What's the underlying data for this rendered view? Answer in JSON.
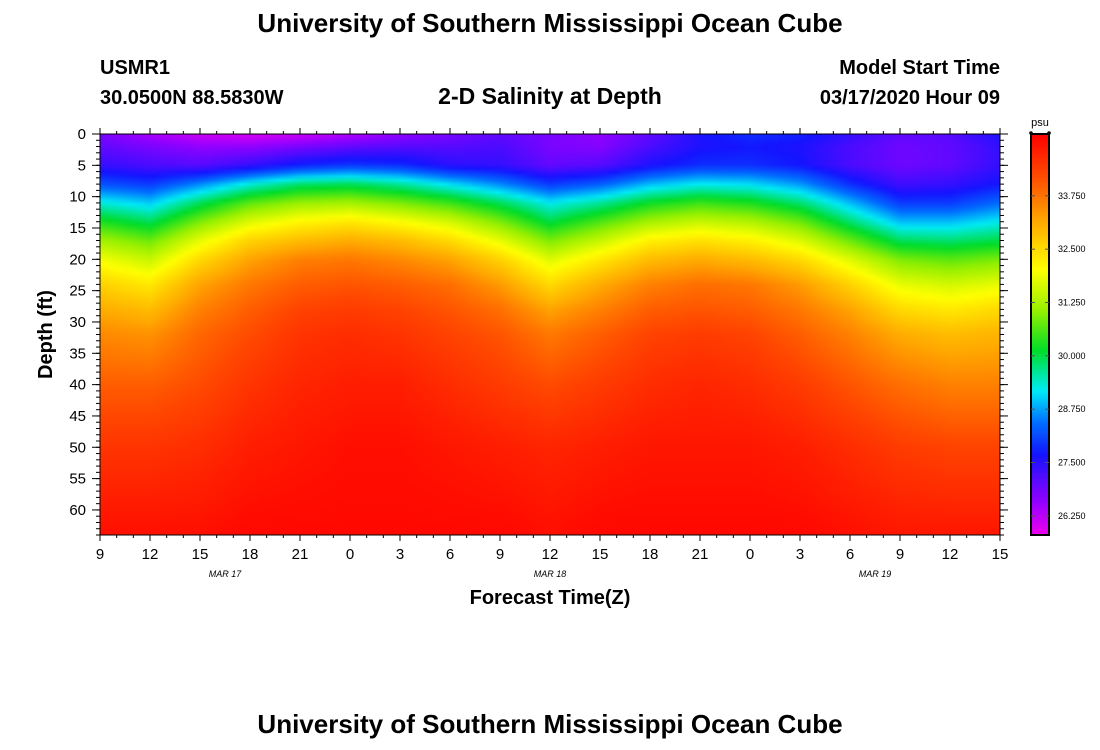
{
  "header": {
    "title_top": "University of Southern Mississippi Ocean Cube",
    "station_id": "USMR1",
    "station_coords": "30.0500N 88.5830W",
    "plot_title": "2-D Salinity at Depth",
    "model_start_label": "Model Start Time",
    "model_start_value": "03/17/2020 Hour 09",
    "title_bottom": "University of Southern Mississippi Ocean Cube"
  },
  "chart_data": {
    "type": "heatmap",
    "title": "2-D Salinity at Depth",
    "xlabel": "Forecast Time(Z)",
    "ylabel": "Depth (ft)",
    "x_ticks": [
      "9",
      "12",
      "15",
      "18",
      "21",
      "0",
      "3",
      "6",
      "9",
      "12",
      "15",
      "18",
      "21",
      "0",
      "3",
      "6",
      "9",
      "12",
      "15"
    ],
    "x_range_hours": [
      0,
      54
    ],
    "date_labels": [
      {
        "text": "MAR 17",
        "hour": 7.5
      },
      {
        "text": "MAR 18",
        "hour": 27
      },
      {
        "text": "MAR 19",
        "hour": 46.5
      }
    ],
    "y_ticks": [
      "0",
      "5",
      "10",
      "15",
      "20",
      "25",
      "30",
      "35",
      "40",
      "45",
      "50",
      "55",
      "60"
    ],
    "y_range_ft": [
      0,
      64
    ],
    "x_hours": [
      0,
      3,
      6,
      9,
      12,
      15,
      18,
      21,
      24,
      27,
      30,
      33,
      36,
      39,
      42,
      45,
      48,
      51,
      54
    ],
    "depth_ft": [
      0,
      2,
      5,
      8,
      11,
      14,
      17,
      20,
      24,
      28,
      32,
      40,
      50,
      64
    ],
    "salinity_psu": [
      [
        26.8,
        26.4,
        26.1,
        26.0,
        26.1,
        26.3,
        26.6,
        26.8,
        27.0,
        26.8,
        26.6,
        27.0,
        27.6,
        27.9,
        27.8,
        27.4,
        27.0,
        27.1,
        27.6
      ],
      [
        27.0,
        26.8,
        26.6,
        26.6,
        26.8,
        27.0,
        27.1,
        27.1,
        27.2,
        26.8,
        26.7,
        27.2,
        27.6,
        27.7,
        27.6,
        27.2,
        26.9,
        27.0,
        27.4
      ],
      [
        27.4,
        27.2,
        27.1,
        27.4,
        27.8,
        28.0,
        27.9,
        27.5,
        27.4,
        27.0,
        27.1,
        27.6,
        27.9,
        27.9,
        27.7,
        27.2,
        26.9,
        27.0,
        27.4
      ],
      [
        28.2,
        28.0,
        28.6,
        29.3,
        29.8,
        29.9,
        29.6,
        29.1,
        28.6,
        28.0,
        28.3,
        28.9,
        29.2,
        29.1,
        28.7,
        27.9,
        27.3,
        27.4,
        27.7
      ],
      [
        29.3,
        29.0,
        29.9,
        30.7,
        31.1,
        31.2,
        30.9,
        30.5,
        29.9,
        29.2,
        29.6,
        30.2,
        30.5,
        30.3,
        29.8,
        28.9,
        28.0,
        28.0,
        28.4
      ],
      [
        30.3,
        29.9,
        30.9,
        31.7,
        32.1,
        32.3,
        32.0,
        31.6,
        30.9,
        30.0,
        30.6,
        31.2,
        31.5,
        31.3,
        30.8,
        29.8,
        28.9,
        28.9,
        29.2
      ],
      [
        31.2,
        30.8,
        31.8,
        32.6,
        32.9,
        33.1,
        32.9,
        32.5,
        31.8,
        30.9,
        31.5,
        32.2,
        32.4,
        32.2,
        31.7,
        30.8,
        29.9,
        29.8,
        30.0
      ],
      [
        31.9,
        31.5,
        32.5,
        33.2,
        33.6,
        33.7,
        33.5,
        33.2,
        32.6,
        31.7,
        32.3,
        32.9,
        33.1,
        32.9,
        32.5,
        31.7,
        30.9,
        30.7,
        30.9
      ],
      [
        32.6,
        32.3,
        33.2,
        33.7,
        34.0,
        34.1,
        34.0,
        33.8,
        33.3,
        32.5,
        33.1,
        33.6,
        33.8,
        33.7,
        33.3,
        32.6,
        31.8,
        31.6,
        31.8
      ],
      [
        33.1,
        32.9,
        33.6,
        34.0,
        34.3,
        34.4,
        34.3,
        34.1,
        33.8,
        33.2,
        33.6,
        34.0,
        34.1,
        34.0,
        33.7,
        33.2,
        32.5,
        32.3,
        32.5
      ],
      [
        33.5,
        33.4,
        33.9,
        34.2,
        34.5,
        34.6,
        34.5,
        34.3,
        34.1,
        33.7,
        34.0,
        34.3,
        34.4,
        34.3,
        34.0,
        33.6,
        33.1,
        32.9,
        33.0
      ],
      [
        34.0,
        34.0,
        34.2,
        34.5,
        34.7,
        34.8,
        34.8,
        34.6,
        34.4,
        34.2,
        34.4,
        34.6,
        34.7,
        34.6,
        34.4,
        34.1,
        33.8,
        33.6,
        33.6
      ],
      [
        34.5,
        34.5,
        34.6,
        34.8,
        34.9,
        35.0,
        35.0,
        34.9,
        34.8,
        34.7,
        34.8,
        34.9,
        34.9,
        34.9,
        34.8,
        34.6,
        34.4,
        34.3,
        34.3
      ],
      [
        35.0,
        35.0,
        35.0,
        35.1,
        35.1,
        35.1,
        35.1,
        35.1,
        35.1,
        35.0,
        35.1,
        35.1,
        35.1,
        35.1,
        35.1,
        35.0,
        34.9,
        34.9,
        34.9
      ]
    ],
    "colorbar": {
      "unit": "psu",
      "min": 25.8,
      "max": 35.2,
      "tick_labels": [
        "26.250",
        "27.500",
        "28.750",
        "30.000",
        "31.250",
        "32.500",
        "33.750"
      ],
      "tick_values": [
        26.25,
        27.5,
        28.75,
        30.0,
        31.25,
        32.5,
        33.75
      ]
    }
  }
}
